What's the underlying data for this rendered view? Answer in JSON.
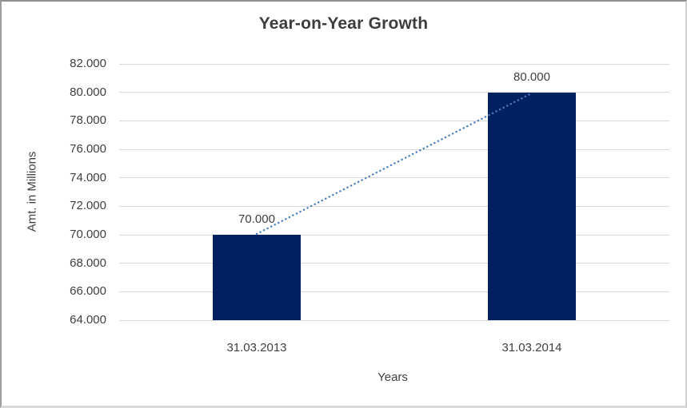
{
  "chart_data": {
    "type": "bar",
    "title": "Year-on-Year Growth",
    "xlabel": "Years",
    "ylabel": "Amt. in Millions",
    "categories": [
      "31.03.2013",
      "31.03.2014"
    ],
    "values": [
      70000,
      80000
    ],
    "data_labels": [
      "70.000",
      "80.000"
    ],
    "ylim": [
      64000,
      82000
    ],
    "ytick_step": 2000,
    "yticks": [
      {
        "value": 64000,
        "label": "64.000"
      },
      {
        "value": 66000,
        "label": "66.000"
      },
      {
        "value": 68000,
        "label": "68.000"
      },
      {
        "value": 70000,
        "label": "70.000"
      },
      {
        "value": 72000,
        "label": "72.000"
      },
      {
        "value": 74000,
        "label": "74.000"
      },
      {
        "value": 76000,
        "label": "76.000"
      },
      {
        "value": 78000,
        "label": "78.000"
      },
      {
        "value": 80000,
        "label": "80.000"
      },
      {
        "value": 82000,
        "label": "82.000"
      }
    ],
    "grid": true,
    "legend": "none",
    "trendline": {
      "style": "dotted",
      "from_value": 70000,
      "to_value": 80000
    },
    "colors": {
      "bar": "#002060",
      "trendline": "#4A7EBB",
      "gridline": "#D9D9D9",
      "text": "#404040"
    }
  }
}
